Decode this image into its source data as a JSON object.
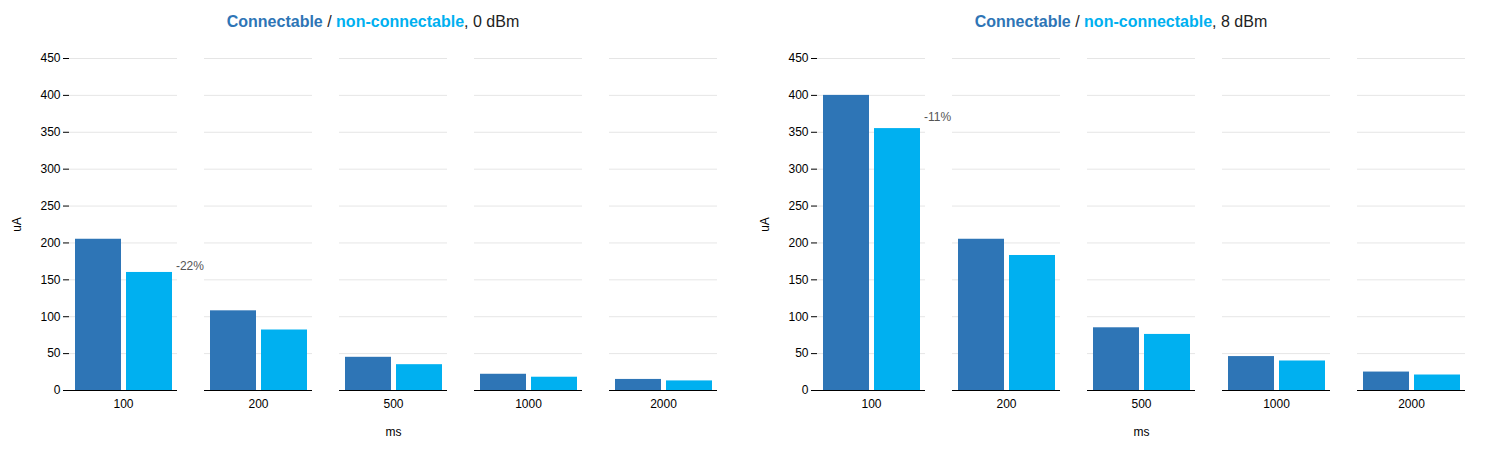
{
  "chart_data": [
    {
      "type": "bar",
      "title": "Connectable / non-connectable, 0 dBm",
      "xlabel": "ms",
      "ylabel": "uA",
      "categories": [
        "100",
        "200",
        "500",
        "1000",
        "2000"
      ],
      "series": [
        {
          "name": "Connectable",
          "color": "#2E75B6",
          "values": [
            205,
            108,
            45,
            22,
            15
          ]
        },
        {
          "name": "non-connectable",
          "color": "#00B0F0",
          "values": [
            160,
            82,
            35,
            18,
            13
          ]
        }
      ],
      "annotations": [
        {
          "text": "-22%",
          "x": "100",
          "series": "non-connectable",
          "y": 168
        }
      ],
      "ylim": [
        0,
        450
      ],
      "yticks": [
        0,
        50,
        100,
        150,
        200,
        250,
        300,
        350,
        400,
        450
      ],
      "grid": true
    },
    {
      "type": "bar",
      "title": "Connectable / non-connectable, 8 dBm",
      "xlabel": "ms",
      "ylabel": "uA",
      "categories": [
        "100",
        "200",
        "500",
        "1000",
        "2000"
      ],
      "series": [
        {
          "name": "Connectable",
          "color": "#2E75B6",
          "values": [
            400,
            205,
            85,
            46,
            25
          ]
        },
        {
          "name": "non-connectable",
          "color": "#00B0F0",
          "values": [
            355,
            183,
            76,
            40,
            21
          ]
        }
      ],
      "annotations": [
        {
          "text": "-11%",
          "x": "100",
          "series": "non-connectable",
          "y": 370
        }
      ],
      "ylim": [
        0,
        450
      ],
      "yticks": [
        0,
        50,
        100,
        150,
        200,
        250,
        300,
        350,
        400,
        450
      ],
      "grid": true
    }
  ]
}
